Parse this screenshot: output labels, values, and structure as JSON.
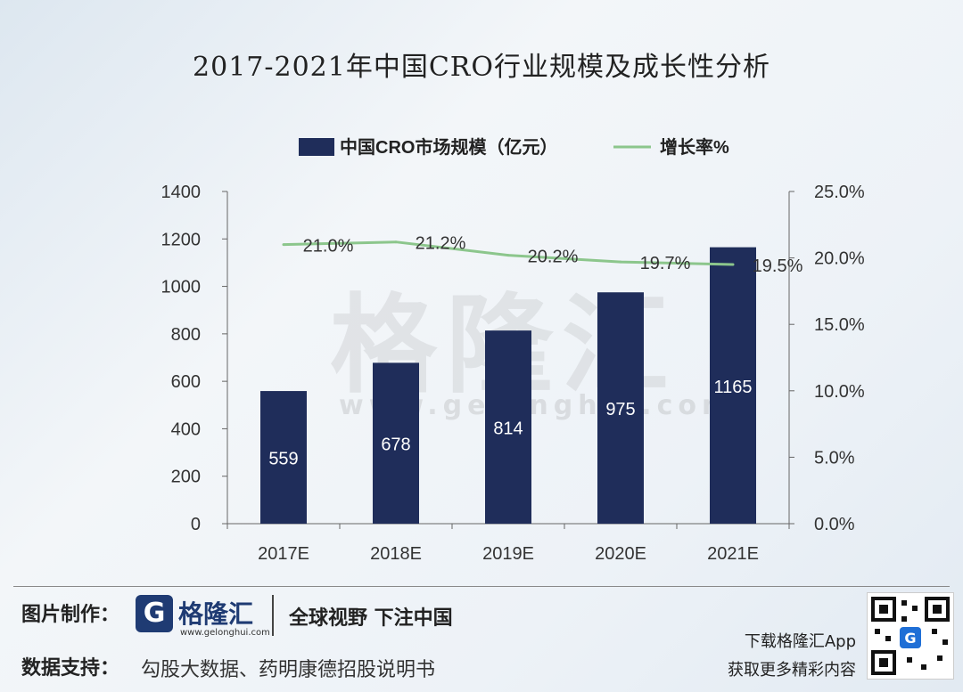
{
  "title": "2017-2021年中国CRO行业规模及成长性分析",
  "watermark": {
    "cn": "格隆汇",
    "url": "www.gelonghui.com"
  },
  "chart_data": {
    "type": "bar",
    "categories": [
      "2017E",
      "2018E",
      "2019E",
      "2020E",
      "2021E"
    ],
    "series": [
      {
        "name": "中国CRO市场规模（亿元）",
        "type": "bar",
        "axis": "left",
        "values": [
          559,
          678,
          814,
          975,
          1165
        ],
        "labels": [
          "559",
          "678",
          "814",
          "975",
          "1165"
        ],
        "color": "#1f2d5a"
      },
      {
        "name": "增长率%",
        "type": "line",
        "axis": "right",
        "values": [
          21.0,
          21.2,
          20.2,
          19.7,
          19.5
        ],
        "labels": [
          "21.0%",
          "21.2%",
          "20.2%",
          "19.7%",
          "19.5%"
        ],
        "color": "#8cc68c"
      }
    ],
    "y_left": {
      "ylim": [
        0,
        1400
      ],
      "ticks": [
        "0",
        "200",
        "400",
        "600",
        "800",
        "1000",
        "1200",
        "1400"
      ]
    },
    "y_right": {
      "ylim": [
        0,
        25
      ],
      "ticks": [
        "0.0%",
        "5.0%",
        "10.0%",
        "15.0%",
        "20.0%",
        "25.0%"
      ]
    },
    "legend_position": "top",
    "grid": false
  },
  "footer": {
    "credit_label": "图片制作：",
    "logo_letter": "G",
    "logo_text": "格隆汇",
    "logo_url": "www.gelonghui.com",
    "slogan": "全球视野 下注中国",
    "source_label": "数据支持：",
    "source_text": "勾股大数据、药明康德招股说明书",
    "app_line1": "下载格隆汇App",
    "app_line2": "获取更多精彩内容"
  }
}
